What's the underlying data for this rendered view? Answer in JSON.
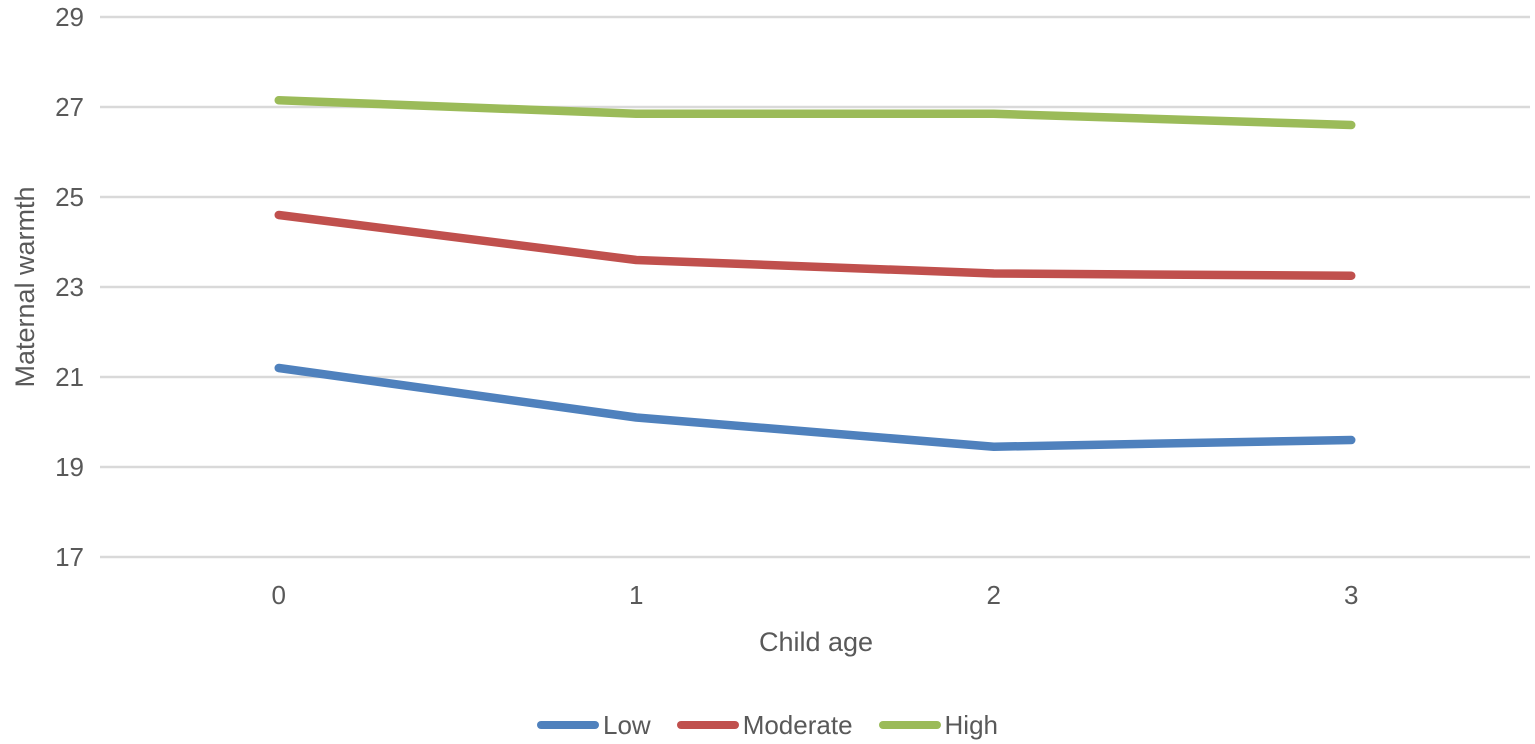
{
  "chart_data": {
    "type": "line",
    "title": "",
    "xlabel": "Child age",
    "ylabel": "Maternal warmth",
    "x": [
      0,
      1,
      2,
      3
    ],
    "xticks": [
      "0",
      "1",
      "2",
      "3"
    ],
    "yticks": [
      29,
      27,
      25,
      23,
      21,
      19,
      17
    ],
    "ylim": [
      17,
      29
    ],
    "grid": true,
    "legend_position": "bottom",
    "series": [
      {
        "name": "Low",
        "color": "#4F81BD",
        "values": [
          21.2,
          20.1,
          19.45,
          19.6
        ]
      },
      {
        "name": "Moderate",
        "color": "#C0504D",
        "values": [
          24.6,
          23.6,
          23.3,
          23.25
        ]
      },
      {
        "name": "High",
        "color": "#9BBB59",
        "values": [
          27.15,
          26.85,
          26.85,
          26.6
        ]
      }
    ],
    "colors": {
      "gridline": "#d9d9d9",
      "text": "#595959",
      "background": "#ffffff"
    }
  }
}
